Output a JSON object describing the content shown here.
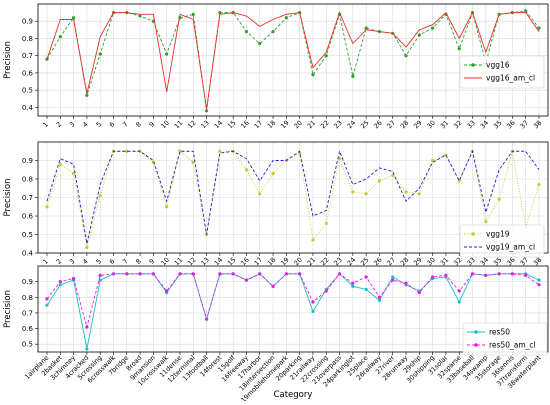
{
  "figure": {
    "xlabel": "Category",
    "ylabel": "Precision"
  },
  "chart_data": [
    {
      "type": "line",
      "ylabel": "Precision",
      "xlabel": "",
      "ylim": [
        0.35,
        1.0
      ],
      "yticks": [
        0.4,
        0.5,
        0.6,
        0.7,
        0.8,
        0.9
      ],
      "x": [
        1,
        2,
        3,
        4,
        5,
        6,
        7,
        8,
        9,
        10,
        11,
        12,
        13,
        14,
        15,
        16,
        17,
        18,
        19,
        20,
        21,
        22,
        23,
        24,
        25,
        26,
        27,
        28,
        29,
        30,
        31,
        32,
        33,
        34,
        35,
        36,
        37,
        38
      ],
      "xticklabels": [
        "1",
        "2",
        "3",
        "4",
        "5",
        "6",
        "7",
        "8",
        "9",
        "10",
        "11",
        "12",
        "13",
        "14",
        "15",
        "16",
        "17",
        "18",
        "19",
        "20",
        "21",
        "22",
        "23",
        "24",
        "25",
        "26",
        "27",
        "28",
        "29",
        "30",
        "31",
        "32",
        "33",
        "34",
        "35",
        "36",
        "37",
        "38"
      ],
      "grid": true,
      "legend_position": "center-right",
      "series": [
        {
          "name": "vgg16",
          "color": "#2ca02c",
          "linestyle": "dashed",
          "marker": "circle",
          "values": [
            0.68,
            0.81,
            0.92,
            0.47,
            0.71,
            0.95,
            0.95,
            0.93,
            0.9,
            0.71,
            0.92,
            0.94,
            0.38,
            0.95,
            0.95,
            0.84,
            0.77,
            0.84,
            0.92,
            0.95,
            0.59,
            0.7,
            0.94,
            0.58,
            0.86,
            0.84,
            0.83,
            0.7,
            0.82,
            0.86,
            0.94,
            0.74,
            0.95,
            0.66,
            0.94,
            0.95,
            0.96,
            0.86
          ]
        },
        {
          "name": "vgg16_am_cl",
          "color": "#e8302a",
          "linestyle": "solid",
          "marker": "none",
          "values": [
            0.68,
            0.91,
            0.91,
            0.48,
            0.81,
            0.95,
            0.95,
            0.94,
            0.94,
            0.49,
            0.94,
            0.91,
            0.39,
            0.94,
            0.95,
            0.93,
            0.87,
            0.91,
            0.94,
            0.95,
            0.63,
            0.72,
            0.95,
            0.77,
            0.85,
            0.84,
            0.83,
            0.75,
            0.85,
            0.88,
            0.95,
            0.8,
            0.95,
            0.72,
            0.94,
            0.95,
            0.95,
            0.84
          ]
        }
      ]
    },
    {
      "type": "line",
      "ylabel": "Precision",
      "xlabel": "",
      "ylim": [
        0.4,
        1.0
      ],
      "yticks": [
        0.4,
        0.5,
        0.6,
        0.7,
        0.8,
        0.9
      ],
      "x": [
        1,
        2,
        3,
        4,
        5,
        6,
        7,
        8,
        9,
        10,
        11,
        12,
        13,
        14,
        15,
        16,
        17,
        18,
        19,
        20,
        21,
        22,
        23,
        24,
        25,
        26,
        27,
        28,
        29,
        30,
        31,
        32,
        33,
        34,
        35,
        36,
        37,
        38
      ],
      "xticklabels": [
        "1",
        "2",
        "3",
        "4",
        "5",
        "6",
        "7",
        "8",
        "9",
        "10",
        "11",
        "12",
        "13",
        "14",
        "15",
        "16",
        "17",
        "18",
        "19",
        "20",
        "21",
        "22",
        "23",
        "24",
        "25",
        "26",
        "27",
        "28",
        "29",
        "30",
        "31",
        "32",
        "33",
        "34",
        "35",
        "36",
        "37",
        "38"
      ],
      "grid": true,
      "legend_position": "lower-right",
      "series": [
        {
          "name": "vgg19",
          "color": "#c8c832",
          "linestyle": "dotted",
          "marker": "circle",
          "values": [
            0.65,
            0.88,
            0.83,
            0.43,
            0.71,
            0.95,
            0.95,
            0.95,
            0.89,
            0.65,
            0.95,
            0.89,
            0.5,
            0.95,
            0.95,
            0.85,
            0.72,
            0.83,
            0.9,
            0.94,
            0.47,
            0.56,
            0.91,
            0.73,
            0.72,
            0.79,
            0.82,
            0.73,
            0.72,
            0.9,
            0.93,
            0.79,
            0.95,
            0.57,
            0.69,
            0.95,
            0.54,
            0.77
          ]
        },
        {
          "name": "vgg19_am_cl",
          "color": "#1f1fd0",
          "linestyle": "dashed",
          "marker": "none",
          "values": [
            0.68,
            0.91,
            0.88,
            0.45,
            0.77,
            0.95,
            0.95,
            0.95,
            0.9,
            0.68,
            0.95,
            0.95,
            0.5,
            0.94,
            0.95,
            0.91,
            0.79,
            0.9,
            0.9,
            0.95,
            0.6,
            0.63,
            0.95,
            0.77,
            0.8,
            0.86,
            0.84,
            0.68,
            0.75,
            0.89,
            0.93,
            0.79,
            0.95,
            0.62,
            0.85,
            0.95,
            0.95,
            0.85
          ]
        }
      ]
    },
    {
      "type": "line",
      "ylabel": "Precision",
      "xlabel": "Category",
      "ylim": [
        0.45,
        1.0
      ],
      "yticks": [
        0.5,
        0.6,
        0.7,
        0.8,
        0.9
      ],
      "x": [
        1,
        2,
        3,
        4,
        5,
        6,
        7,
        8,
        9,
        10,
        11,
        12,
        13,
        14,
        15,
        16,
        17,
        18,
        19,
        20,
        21,
        22,
        23,
        24,
        25,
        26,
        27,
        28,
        29,
        30,
        31,
        32,
        33,
        34,
        35,
        36,
        37,
        38
      ],
      "xticklabels": [
        "1airplane",
        "2basket",
        "3chimney",
        "4cracked",
        "5crossing",
        "6crosswalk",
        "7bridge",
        "8road",
        "9mansion",
        "10crosswalk",
        "11dense",
        "12terminal",
        "13football",
        "14forest",
        "15golf",
        "16freeway",
        "17harbor",
        "18intersection",
        "19mobilehomepark",
        "20parking",
        "21railway",
        "22crossing",
        "23overpass",
        "24parkinglot",
        "25place",
        "26railway",
        "27river",
        "28runway",
        "29ship",
        "30shipping",
        "31solar",
        "32sparse",
        "33baseball",
        "34swamp",
        "35storage",
        "36tennis",
        "37transform",
        "38waterplant"
      ],
      "grid": true,
      "legend_position": "lower-right",
      "series": [
        {
          "name": "res50",
          "color": "#17c0c8",
          "linestyle": "solid",
          "marker": "circle",
          "values": [
            0.75,
            0.88,
            0.91,
            0.47,
            0.91,
            0.95,
            0.95,
            0.95,
            0.95,
            0.83,
            0.95,
            0.95,
            0.66,
            0.95,
            0.95,
            0.91,
            0.95,
            0.87,
            0.95,
            0.95,
            0.71,
            0.85,
            0.95,
            0.87,
            0.85,
            0.78,
            0.93,
            0.88,
            0.84,
            0.92,
            0.93,
            0.77,
            0.95,
            0.94,
            0.95,
            0.95,
            0.95,
            0.91
          ]
        },
        {
          "name": "res50_am_cl",
          "color": "#e020e0",
          "linestyle": "dashed",
          "marker": "circle",
          "values": [
            0.79,
            0.9,
            0.92,
            0.61,
            0.94,
            0.95,
            0.95,
            0.95,
            0.95,
            0.84,
            0.95,
            0.95,
            0.66,
            0.95,
            0.95,
            0.91,
            0.95,
            0.87,
            0.95,
            0.95,
            0.77,
            0.84,
            0.95,
            0.89,
            0.93,
            0.8,
            0.91,
            0.89,
            0.83,
            0.93,
            0.94,
            0.84,
            0.95,
            0.94,
            0.95,
            0.95,
            0.94,
            0.88
          ]
        }
      ]
    }
  ]
}
